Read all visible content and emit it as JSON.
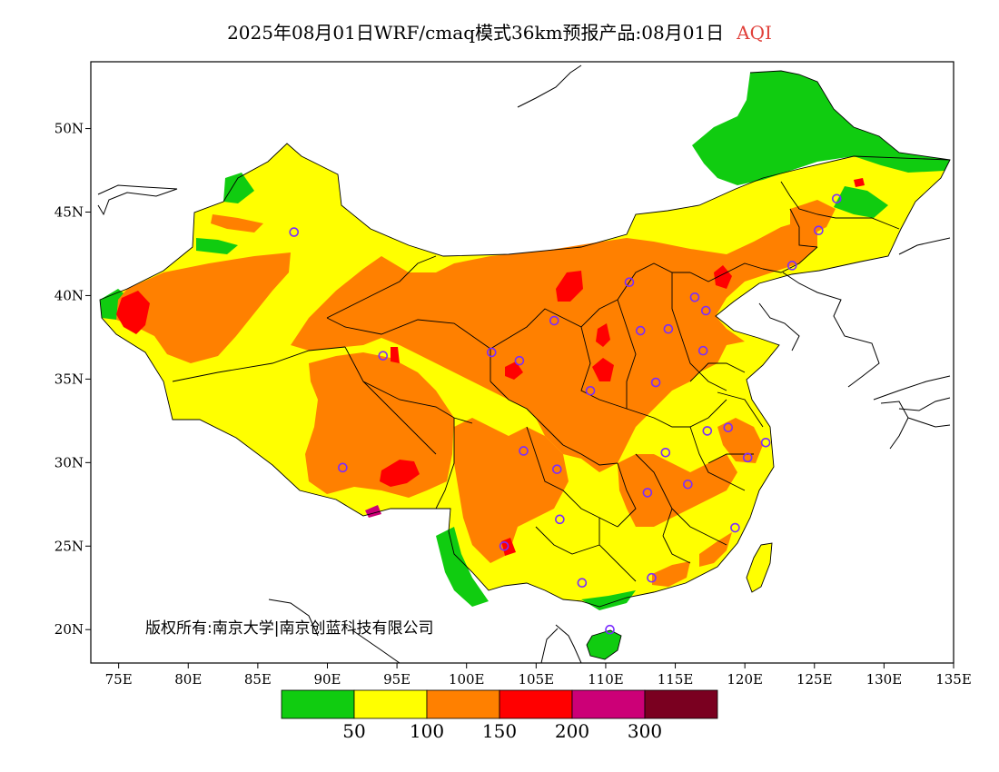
{
  "title": {
    "text": "2025年08月01日WRF/cmaq模式36km预报产品:08月01日",
    "variable": "AQI",
    "variable_color": "#e0403a"
  },
  "copyright": "版权所有:南京大学|南京创蓝科技有限公司",
  "axes": {
    "lon_ticks": [
      "75E",
      "80E",
      "85E",
      "90E",
      "95E",
      "100E",
      "105E",
      "110E",
      "115E",
      "120E",
      "125E",
      "130E",
      "135E"
    ],
    "lat_ticks": [
      "20N",
      "25N",
      "30N",
      "35N",
      "40N",
      "45N",
      "50N"
    ],
    "lon_range": [
      73,
      135
    ],
    "lat_range": [
      18,
      54
    ]
  },
  "legend": {
    "colors": [
      "#10cc10",
      "#ffff00",
      "#ff8000",
      "#ff0000",
      "#cc0077",
      "#7a0020"
    ],
    "labels": [
      "50",
      "100",
      "150",
      "200",
      "300"
    ]
  },
  "cities": [
    {
      "lon": 87.6,
      "lat": 43.8
    },
    {
      "lon": 91.1,
      "lat": 29.7
    },
    {
      "lon": 94.0,
      "lat": 36.4
    },
    {
      "lon": 101.8,
      "lat": 36.6
    },
    {
      "lon": 103.8,
      "lat": 36.1
    },
    {
      "lon": 106.3,
      "lat": 38.5
    },
    {
      "lon": 111.7,
      "lat": 40.8
    },
    {
      "lon": 112.5,
      "lat": 37.9
    },
    {
      "lon": 114.5,
      "lat": 38.0
    },
    {
      "lon": 116.4,
      "lat": 39.9
    },
    {
      "lon": 117.2,
      "lat": 39.1
    },
    {
      "lon": 123.4,
      "lat": 41.8
    },
    {
      "lon": 125.3,
      "lat": 43.9
    },
    {
      "lon": 126.6,
      "lat": 45.8
    },
    {
      "lon": 117.0,
      "lat": 36.7
    },
    {
      "lon": 113.6,
      "lat": 34.8
    },
    {
      "lon": 108.9,
      "lat": 34.3
    },
    {
      "lon": 104.1,
      "lat": 30.7
    },
    {
      "lon": 106.5,
      "lat": 29.6
    },
    {
      "lon": 114.3,
      "lat": 30.6
    },
    {
      "lon": 117.3,
      "lat": 31.9
    },
    {
      "lon": 118.8,
      "lat": 32.1
    },
    {
      "lon": 121.5,
      "lat": 31.2
    },
    {
      "lon": 120.2,
      "lat": 30.3
    },
    {
      "lon": 115.9,
      "lat": 28.7
    },
    {
      "lon": 113.0,
      "lat": 28.2
    },
    {
      "lon": 106.7,
      "lat": 26.6
    },
    {
      "lon": 102.7,
      "lat": 25.0
    },
    {
      "lon": 108.3,
      "lat": 22.8
    },
    {
      "lon": 113.3,
      "lat": 23.1
    },
    {
      "lon": 119.3,
      "lat": 26.1
    },
    {
      "lon": 110.3,
      "lat": 20.0
    }
  ]
}
